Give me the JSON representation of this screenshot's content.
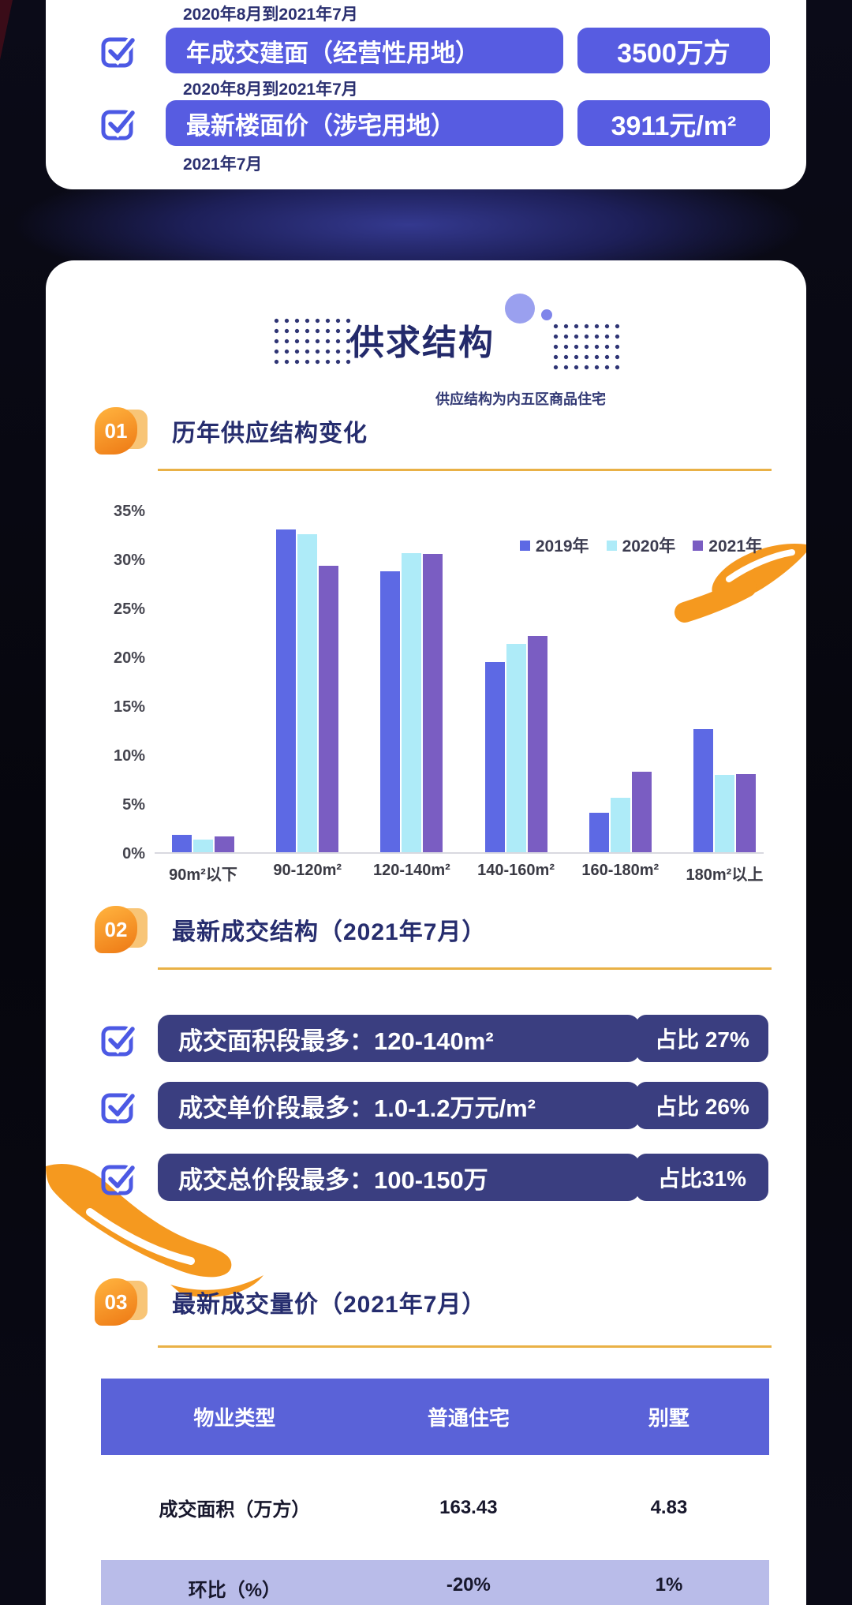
{
  "colors": {
    "accent_purple": "#575CE1",
    "dark_pill": "#3A3E80",
    "table_header": "#5A62D8",
    "table_alt_row": "#B9BCE9",
    "orange": "#F5991F",
    "underline_gold": "#E9B146",
    "heading_navy": "#262D6E"
  },
  "top_card": {
    "leading_caption": "2020年8月到2021年7月",
    "rows": [
      {
        "label": "年成交建面（经营性用地）",
        "value": "3500万方",
        "caption": "2020年8月到2021年7月"
      },
      {
        "label": "最新楼面价（涉宅用地）",
        "value": "3911元/m²",
        "caption": "2021年7月"
      }
    ]
  },
  "main": {
    "title": "供求结构",
    "note": "供应结构为内五区商品住宅",
    "sections": [
      {
        "num": "01",
        "heading": "历年供应结构变化"
      },
      {
        "num": "02",
        "heading": "最新成交结构（2021年7月）"
      },
      {
        "num": "03",
        "heading": "最新成交量价（2021年7月）"
      }
    ]
  },
  "chart_data": {
    "type": "bar",
    "title": "历年供应结构变化",
    "categories": [
      "90m²以下",
      "90-120m²",
      "120-140m²",
      "140-160m²",
      "160-180m²",
      "180m²以上"
    ],
    "series": [
      {
        "name": "2019年",
        "color": "#5D69E4",
        "values": [
          1.8,
          33,
          28.7,
          19.4,
          4,
          12.6
        ]
      },
      {
        "name": "2020年",
        "color": "#AEEBF8",
        "values": [
          1.3,
          32.5,
          30.6,
          21.3,
          5.6,
          7.9
        ]
      },
      {
        "name": "2021年",
        "color": "#7A5DC2",
        "values": [
          1.6,
          29.3,
          30.5,
          22.1,
          8.2,
          8
        ]
      }
    ],
    "xlabel": "",
    "ylabel": "",
    "unit": "%",
    "ylim": [
      0,
      35
    ],
    "yticks": [
      "35%",
      "30%",
      "25%",
      "20%",
      "15%",
      "10%",
      "5%",
      "0%"
    ],
    "grid": false,
    "legend_position": "top-right"
  },
  "stats": {
    "rows": [
      {
        "label": "成交面积段最多：120-140m²",
        "share": "占比 27%"
      },
      {
        "label": "成交单价段最多：1.0-1.2万元/m²",
        "share": "占比 26%"
      },
      {
        "label": "成交总价段最多：100-150万",
        "share": "占比31%"
      }
    ]
  },
  "table": {
    "headers": [
      "物业类型",
      "普通住宅",
      "别墅"
    ],
    "rows": [
      {
        "cells": [
          "成交面积（万方）",
          "163.43",
          "4.83"
        ]
      },
      {
        "cells": [
          "环比（%）",
          "-20%",
          "1%"
        ]
      }
    ]
  }
}
